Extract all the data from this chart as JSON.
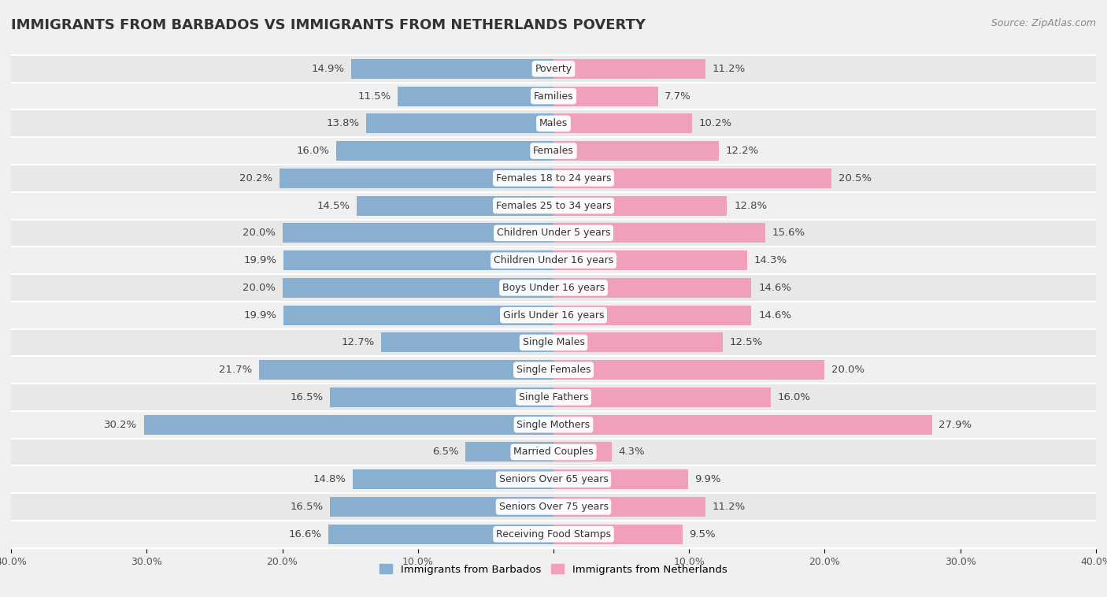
{
  "title": "IMMIGRANTS FROM BARBADOS VS IMMIGRANTS FROM NETHERLANDS POVERTY",
  "source": "Source: ZipAtlas.com",
  "categories": [
    "Poverty",
    "Families",
    "Males",
    "Females",
    "Females 18 to 24 years",
    "Females 25 to 34 years",
    "Children Under 5 years",
    "Children Under 16 years",
    "Boys Under 16 years",
    "Girls Under 16 years",
    "Single Males",
    "Single Females",
    "Single Fathers",
    "Single Mothers",
    "Married Couples",
    "Seniors Over 65 years",
    "Seniors Over 75 years",
    "Receiving Food Stamps"
  ],
  "barbados_values": [
    14.9,
    11.5,
    13.8,
    16.0,
    20.2,
    14.5,
    20.0,
    19.9,
    20.0,
    19.9,
    12.7,
    21.7,
    16.5,
    30.2,
    6.5,
    14.8,
    16.5,
    16.6
  ],
  "netherlands_values": [
    11.2,
    7.7,
    10.2,
    12.2,
    20.5,
    12.8,
    15.6,
    14.3,
    14.6,
    14.6,
    12.5,
    20.0,
    16.0,
    27.9,
    4.3,
    9.9,
    11.2,
    9.5
  ],
  "barbados_color": "#88aed0",
  "netherlands_color": "#f0a0b8",
  "row_color_even": "#e8e8e8",
  "row_color_odd": "#f0f0f0",
  "background_color": "#f0f0f0",
  "xlim": 40.0,
  "legend_barbados": "Immigrants from Barbados",
  "legend_netherlands": "Immigrants from Netherlands",
  "label_fontsize": 9.5,
  "cat_fontsize": 9.0,
  "title_fontsize": 13,
  "source_fontsize": 9
}
